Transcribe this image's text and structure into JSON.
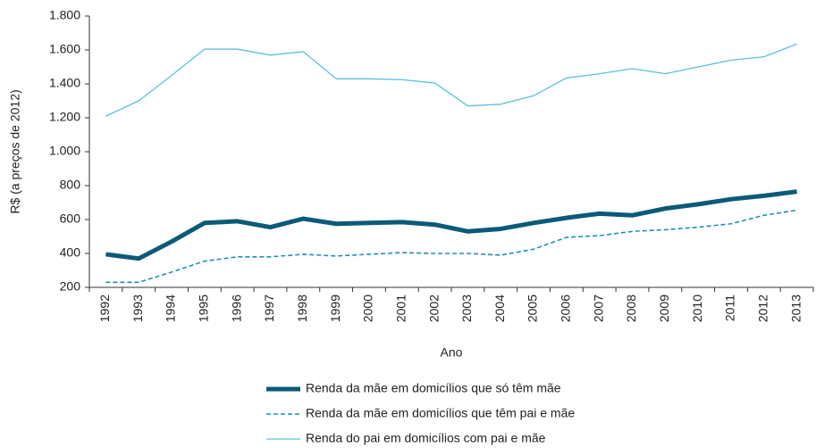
{
  "chart_data": {
    "type": "line",
    "x_label": "Ano",
    "y_label": "R$ (a preços de 2012)",
    "categories": [
      "1992",
      "1993",
      "1994",
      "1995",
      "1996",
      "1997",
      "1998",
      "1999",
      "2000",
      "2001",
      "2002",
      "2003",
      "2004",
      "2005",
      "2006",
      "2007",
      "2008",
      "2009",
      "2010",
      "2011",
      "2012",
      "2013"
    ],
    "series": [
      {
        "name": "Renda da mãe em domicílios que só têm mãe",
        "color": "#0b5a78",
        "style": "solid",
        "width": 5,
        "values": [
          395,
          370,
          470,
          580,
          590,
          555,
          605,
          575,
          580,
          585,
          570,
          530,
          545,
          580,
          610,
          635,
          625,
          665,
          690,
          720,
          740,
          765
        ]
      },
      {
        "name": "Renda da mãe em domicílios que têm pai e mãe",
        "color": "#1f8fb8",
        "style": "dashed",
        "width": 1.6,
        "values": [
          230,
          230,
          290,
          355,
          380,
          380,
          395,
          385,
          395,
          405,
          400,
          400,
          390,
          425,
          495,
          505,
          530,
          540,
          555,
          575,
          625,
          655
        ]
      },
      {
        "name": "Renda do pai em domicílios com pai e mãe",
        "color": "#5bc0de",
        "style": "solid",
        "width": 1.3,
        "values": [
          1210,
          1300,
          1450,
          1605,
          1605,
          1570,
          1590,
          1430,
          1430,
          1425,
          1405,
          1270,
          1280,
          1330,
          1435,
          1460,
          1490,
          1460,
          1500,
          1540,
          1560,
          1635
        ]
      }
    ],
    "ylim": [
      200,
      1800
    ],
    "yticks": [
      200,
      400,
      600,
      800,
      {
        "value": 1000,
        "label": "1.000"
      },
      {
        "value": 1200,
        "label": "1.200"
      },
      {
        "value": 1400,
        "label": "1.400"
      },
      {
        "value": 1600,
        "label": "1.600"
      },
      {
        "value": 1800,
        "label": "1.800"
      }
    ],
    "grid": false,
    "legend": "bottom"
  }
}
